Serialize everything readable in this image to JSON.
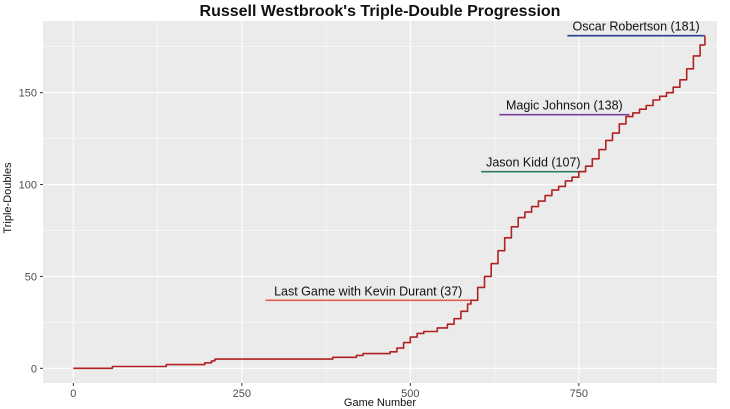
{
  "chart_data": {
    "type": "line",
    "title": "Russell Westbrook's Triple-Double Progression",
    "xlabel": "Game Number",
    "ylabel": "Triple-Doubles",
    "xlim": [
      -45,
      955
    ],
    "ylim": [
      -8,
      189
    ],
    "x_ticks": [
      0,
      250,
      500,
      750
    ],
    "y_ticks": [
      0,
      50,
      100,
      150
    ],
    "grid": true,
    "background": "#EBEBEB",
    "gridline_color": "#FFFFFF",
    "line_color": "#B22222",
    "series": [
      {
        "x": [
          0,
          55,
          58,
          135,
          138,
          190,
          195,
          205,
          210,
          380,
          385,
          420,
          430,
          470,
          480,
          490,
          500,
          510,
          520,
          540,
          555,
          565,
          575,
          585,
          590,
          600,
          610,
          620,
          630,
          640,
          650,
          660,
          670,
          680,
          690,
          700,
          710,
          720,
          730,
          740,
          750,
          760,
          770,
          780,
          790,
          800,
          810,
          820,
          830,
          840,
          850,
          860,
          870,
          880,
          890,
          900,
          910,
          920,
          930,
          937
        ],
        "y": [
          0,
          0,
          1,
          1,
          2,
          2,
          3,
          4,
          5,
          5,
          6,
          7,
          8,
          9,
          11,
          14,
          17,
          19,
          20,
          22,
          24,
          27,
          31,
          35,
          37,
          44,
          50,
          57,
          64,
          71,
          77,
          82,
          85,
          88,
          91,
          94,
          97,
          99,
          102,
          104,
          107,
          110,
          114,
          119,
          124,
          128,
          133,
          137,
          139,
          141,
          143,
          146,
          148,
          150,
          153,
          157,
          163,
          170,
          176,
          181
        ]
      }
    ],
    "annotations": [
      {
        "label": "Last Game with Kevin Durant (37)",
        "y": 37,
        "x_start": 285,
        "x_end": 590,
        "color": "#E06050"
      },
      {
        "label": "Jason Kidd (107)",
        "y": 107,
        "x_start": 605,
        "x_end": 760,
        "color": "#2E7D5B"
      },
      {
        "label": "Magic Johnson (138)",
        "y": 138,
        "x_start": 632,
        "x_end": 825,
        "color": "#7B3FA0"
      },
      {
        "label": "Oscar Robertson (181)",
        "y": 181,
        "x_start": 733,
        "x_end": 937,
        "color": "#2A3E8C"
      }
    ]
  }
}
